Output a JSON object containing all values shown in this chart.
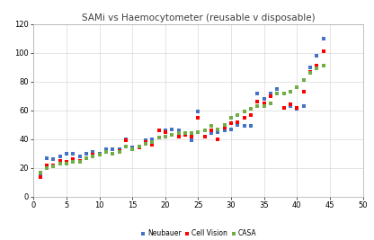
{
  "title": "SAMi vs Haemocytometer (reusable v disposable)",
  "xlim": [
    0,
    50
  ],
  "ylim": [
    0,
    120
  ],
  "xticks": [
    0,
    5,
    10,
    15,
    20,
    25,
    30,
    35,
    40,
    45,
    50
  ],
  "yticks": [
    0,
    20,
    40,
    60,
    80,
    100,
    120
  ],
  "neubauer_x": [
    1,
    2,
    3,
    4,
    5,
    6,
    7,
    8,
    9,
    10,
    11,
    12,
    13,
    14,
    15,
    16,
    17,
    18,
    19,
    20,
    21,
    22,
    23,
    24,
    25,
    26,
    27,
    28,
    29,
    30,
    31,
    32,
    33,
    34,
    35,
    36,
    37,
    38,
    39,
    40,
    41,
    42,
    43,
    44
  ],
  "neubauer_y": [
    15,
    27,
    26,
    28,
    30,
    30,
    28,
    30,
    31,
    30,
    33,
    33,
    33,
    40,
    34,
    35,
    39,
    40,
    46,
    46,
    47,
    46,
    44,
    39,
    59,
    42,
    44,
    45,
    46,
    47,
    50,
    49,
    49,
    72,
    68,
    72,
    75,
    62,
    63,
    61,
    63,
    90,
    98,
    110
  ],
  "cellvision_x": [
    1,
    2,
    3,
    4,
    5,
    6,
    7,
    8,
    9,
    10,
    11,
    12,
    13,
    14,
    15,
    16,
    17,
    18,
    19,
    20,
    21,
    22,
    23,
    24,
    25,
    26,
    27,
    28,
    29,
    30,
    31,
    32,
    33,
    34,
    35,
    36,
    37,
    38,
    39,
    40,
    41,
    42,
    43,
    44
  ],
  "cellvision_y": [
    14,
    22,
    22,
    25,
    24,
    26,
    25,
    27,
    29,
    29,
    31,
    30,
    32,
    39,
    33,
    34,
    38,
    36,
    46,
    45,
    43,
    42,
    43,
    42,
    55,
    42,
    46,
    40,
    48,
    51,
    52,
    55,
    57,
    66,
    65,
    70,
    72,
    62,
    64,
    62,
    73,
    87,
    91,
    101
  ],
  "casa_x": [
    1,
    2,
    3,
    4,
    5,
    6,
    7,
    8,
    9,
    10,
    11,
    12,
    13,
    14,
    15,
    16,
    17,
    18,
    19,
    20,
    21,
    22,
    23,
    24,
    25,
    26,
    27,
    28,
    29,
    30,
    31,
    32,
    33,
    34,
    35,
    36,
    37,
    38,
    39,
    40,
    41,
    42,
    43,
    44
  ],
  "casa_y": [
    17,
    20,
    21,
    23,
    23,
    24,
    24,
    27,
    28,
    29,
    31,
    30,
    31,
    35,
    33,
    35,
    37,
    38,
    41,
    42,
    43,
    44,
    44,
    44,
    45,
    46,
    49,
    47,
    50,
    55,
    57,
    59,
    61,
    63,
    63,
    65,
    72,
    72,
    73,
    76,
    81,
    86,
    89,
    91
  ],
  "neubauer_color": "#4472C4",
  "cellvision_color": "#FF0000",
  "casa_color": "#70AD47",
  "marker_size": 9,
  "background_color": "#FFFFFF",
  "grid_color": "#D9D9D9",
  "title_fontsize": 7.5,
  "tick_fontsize": 6,
  "legend_fontsize": 5.5
}
